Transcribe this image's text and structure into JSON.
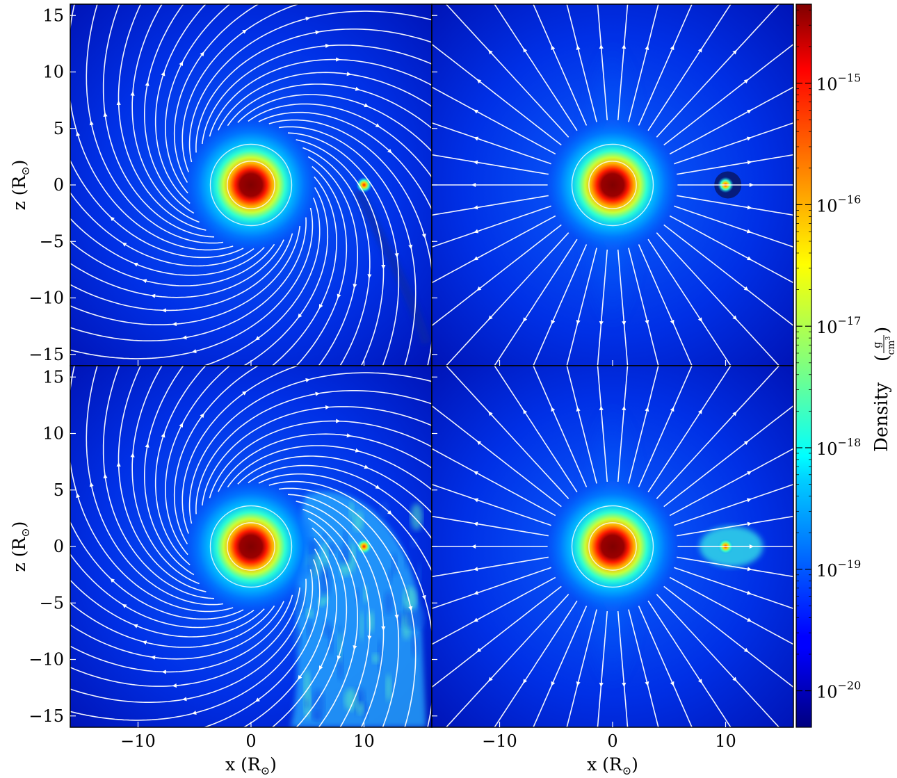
{
  "chart_data": {
    "type": "heatmap",
    "quantity": "Density",
    "panels": [
      {
        "id": "top-left",
        "xlim": [
          -16,
          16
        ],
        "ylim": [
          -16,
          16
        ],
        "star": [
          0,
          0
        ],
        "companion": [
          10,
          0
        ],
        "view": "orbital-plane",
        "stage": "early"
      },
      {
        "id": "top-right",
        "xlim": [
          -16,
          16
        ],
        "ylim": [
          -16,
          16
        ],
        "star": [
          0,
          0
        ],
        "companion": [
          10,
          0
        ],
        "view": "side",
        "stage": "early"
      },
      {
        "id": "bottom-left",
        "xlim": [
          -16,
          16
        ],
        "ylim": [
          -16,
          16
        ],
        "star": [
          0,
          0
        ],
        "companion": [
          10,
          0
        ],
        "view": "orbital-plane",
        "stage": "late"
      },
      {
        "id": "bottom-right",
        "xlim": [
          -16,
          16
        ],
        "ylim": [
          -16,
          16
        ],
        "star": [
          0,
          0
        ],
        "companion": [
          10,
          0
        ],
        "view": "side",
        "stage": "late"
      }
    ],
    "x_ticks": [
      -10,
      0,
      10
    ],
    "x_tick_labels": [
      "−10",
      "0",
      "10"
    ],
    "y_ticks": [
      15,
      10,
      5,
      0,
      -5,
      -10,
      -15
    ],
    "y_tick_labels": [
      "15",
      "10",
      "5",
      "0",
      "−5",
      "−10",
      "−15"
    ],
    "xlabel": "x",
    "ylabel": "z",
    "unit_symbol": "R",
    "unit_subscript": "⊙",
    "colorbar": {
      "label": "Density",
      "unit_numerator": "g",
      "unit_denominator": "cm",
      "unit_denominator_exponent": "3",
      "scale": "log",
      "range_log10": [
        -20.3,
        -14.35
      ],
      "ticks_log10": [
        -15,
        -16,
        -17,
        -18,
        -19,
        -20
      ],
      "tick_base": "10",
      "tick_exponents": [
        "−15",
        "−16",
        "−17",
        "−18",
        "−19",
        "−20"
      ],
      "colormap": "jet"
    },
    "grid": false,
    "streamline_color": "#ffffff"
  }
}
